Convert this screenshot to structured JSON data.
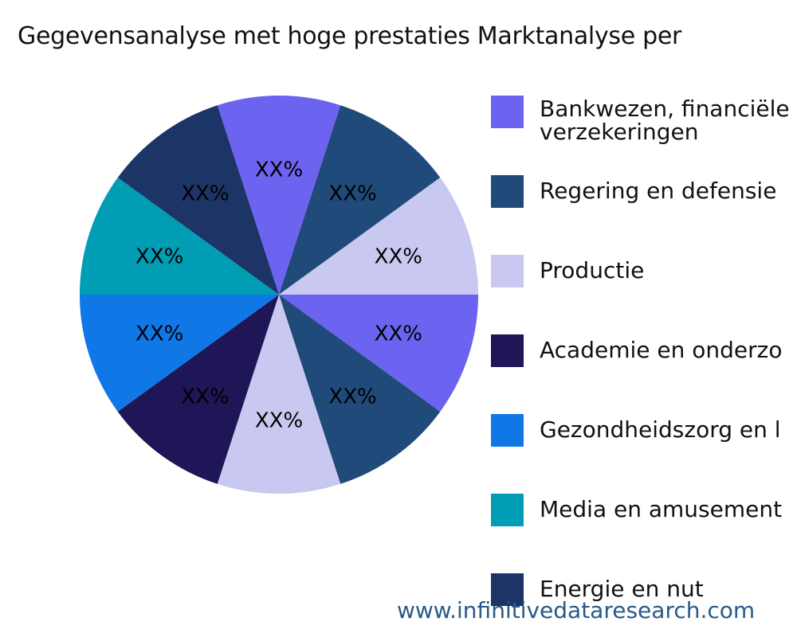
{
  "title": "Gegevensanalyse met hoge prestaties Marktanalyse per",
  "watermark": "www.infinitivedataresearch.com",
  "legend": [
    {
      "label": "Bankwezen, financiële",
      "label2": "verzekeringen",
      "color": "#6c63f0"
    },
    {
      "label": "Regering en defensie",
      "color": "#1f4a7a"
    },
    {
      "label": "Productie",
      "color": "#c8c8f0"
    },
    {
      "label": "Academie en onderzo",
      "color": "#1e1656"
    },
    {
      "label": "Gezondheidszorg en l",
      "color": "#0f77e6"
    },
    {
      "label": "Media en amusement",
      "color": "#009db5"
    },
    {
      "label": "Energie en nut",
      "color": "#1c3466"
    }
  ],
  "chart_data": {
    "type": "pie",
    "title": "Gegevensanalyse met hoge prestaties Marktanalyse per",
    "center": [
      350,
      370
    ],
    "radius": 250,
    "start_angle_deg": -18,
    "slices": [
      {
        "category": "Bankwezen, financiële verzekeringen",
        "value": 10,
        "label": "XX%",
        "color": "#6c63f0"
      },
      {
        "category": "Regering en defensie",
        "value": 10,
        "label": "XX%",
        "color": "#1f4a7a"
      },
      {
        "category": "Productie",
        "value": 10,
        "label": "XX%",
        "color": "#c8c8f0"
      },
      {
        "category": "Bankwezen, financiële verzekeringen",
        "value": 10,
        "label": "XX%",
        "color": "#6c63f0"
      },
      {
        "category": "Regering en defensie",
        "value": 10,
        "label": "XX%",
        "color": "#1f4a7a"
      },
      {
        "category": "Productie",
        "value": 10,
        "label": "XX%",
        "color": "#c8c8f0"
      },
      {
        "category": "Academie en onderzoek",
        "value": 10,
        "label": "XX%",
        "color": "#1e1656"
      },
      {
        "category": "Gezondheidszorg en levenswetenschappen",
        "value": 10,
        "label": "XX%",
        "color": "#0f77e6"
      },
      {
        "category": "Media en amusement",
        "value": 10,
        "label": "XX%",
        "color": "#009db5"
      },
      {
        "category": "Energie en nut",
        "value": 10,
        "label": "XX%",
        "color": "#1c3466"
      }
    ],
    "legend_position": "right",
    "data_labels": "XX%"
  }
}
